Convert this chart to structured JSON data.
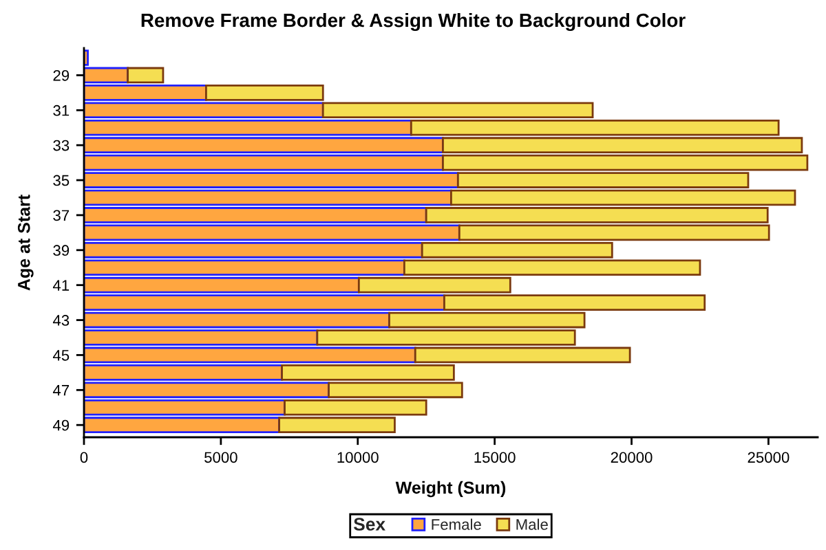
{
  "chart_data": {
    "type": "bar",
    "orientation": "horizontal",
    "stacked": true,
    "title": "Remove Frame Border & Assign White to Background Color",
    "xlabel": "Weight (Sum)",
    "ylabel": "Age at Start",
    "legend_title": "Sex",
    "categories": [
      null,
      "29",
      null,
      "31",
      null,
      "33",
      null,
      "35",
      null,
      "37",
      null,
      "39",
      null,
      "41",
      null,
      "43",
      null,
      "45",
      null,
      "47",
      null,
      "49"
    ],
    "series": [
      {
        "name": "Female",
        "color": "#ffa640",
        "values": [
          140,
          1600,
          4460,
          8730,
          11950,
          13110,
          13110,
          13660,
          13410,
          12500,
          13710,
          12350,
          11700,
          10040,
          13160,
          11150,
          8520,
          12100,
          7230,
          8940,
          7330,
          7130
        ]
      },
      {
        "name": "Male",
        "color": "#f5de52",
        "values": [
          null,
          1290,
          4270,
          9850,
          13420,
          13110,
          13310,
          10600,
          12560,
          12470,
          11310,
          6940,
          10800,
          5530,
          9510,
          7130,
          9410,
          7840,
          6280,
          4870,
          5170,
          4220
        ]
      }
    ],
    "xlim": [
      0,
      26800
    ],
    "xticks": [
      0,
      5000,
      10000,
      15000,
      20000,
      25000
    ],
    "legend": "bottom"
  }
}
